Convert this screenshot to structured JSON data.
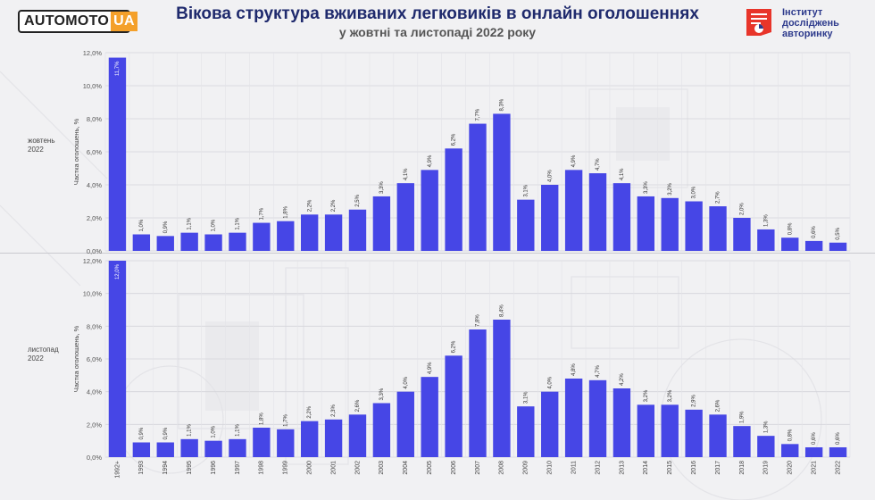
{
  "header": {
    "title": "Вікова структура вживаних легковиків в онлайн оголошеннях",
    "subtitle": "у жовтні та листопаді 2022 року",
    "logo_left": "AUTOMOTO",
    "logo_right": "UA",
    "institute_lines": [
      "Інститут",
      "досліджень",
      "авторинку"
    ]
  },
  "colors": {
    "bar": "#4646e6",
    "title": "#1f2a6d",
    "logo_accent": "#f4a02a",
    "institute_accent": "#e8352a",
    "institute_text": "#2d3a8c"
  },
  "chart_data": [
    {
      "type": "bar",
      "panel_label": [
        "жовтень",
        "2022"
      ],
      "ylabel": "Частка оголошень, %",
      "ylim": [
        0,
        12
      ],
      "yticks": [
        "0,0%",
        "2,0%",
        "4,0%",
        "6,0%",
        "8,0%",
        "10,0%",
        "12,0%"
      ],
      "categories": [
        "1992+",
        "1993",
        "1994",
        "1995",
        "1996",
        "1997",
        "1998",
        "1999",
        "2000",
        "2001",
        "2002",
        "2003",
        "2004",
        "2005",
        "2006",
        "2007",
        "2008",
        "2009",
        "2010",
        "2011",
        "2012",
        "2013",
        "2014",
        "2015",
        "2016",
        "2017",
        "2018",
        "2019",
        "2020",
        "2021",
        "2022"
      ],
      "values": [
        11.7,
        1.0,
        0.9,
        1.1,
        1.0,
        1.1,
        1.7,
        1.8,
        2.2,
        2.2,
        2.5,
        3.3,
        4.1,
        4.9,
        6.2,
        7.7,
        8.3,
        3.1,
        4.0,
        4.9,
        4.7,
        4.1,
        3.3,
        3.2,
        3.0,
        2.7,
        2.0,
        1.3,
        0.8,
        0.6,
        0.5
      ],
      "labels": [
        "11,7%",
        "1,0%",
        "0,9%",
        "1,1%",
        "1,0%",
        "1,1%",
        "1,7%",
        "1,8%",
        "2,2%",
        "2,2%",
        "2,5%",
        "3,3%",
        "4,1%",
        "4,9%",
        "6,2%",
        "7,7%",
        "8,3%",
        "3,1%",
        "4,0%",
        "4,9%",
        "4,7%",
        "4,1%",
        "3,3%",
        "3,2%",
        "3,0%",
        "2,7%",
        "2,0%",
        "1,3%",
        "0,8%",
        "0,6%",
        "0,5%"
      ]
    },
    {
      "type": "bar",
      "panel_label": [
        "листопад",
        "2022"
      ],
      "ylabel": "Частка оголошень, %",
      "ylim": [
        0,
        12
      ],
      "yticks": [
        "0,0%",
        "2,0%",
        "4,0%",
        "6,0%",
        "8,0%",
        "10,0%",
        "12,0%"
      ],
      "categories": [
        "1992+",
        "1993",
        "1994",
        "1995",
        "1996",
        "1997",
        "1998",
        "1999",
        "2000",
        "2001",
        "2002",
        "2003",
        "2004",
        "2005",
        "2006",
        "2007",
        "2008",
        "2009",
        "2010",
        "2011",
        "2012",
        "2013",
        "2014",
        "2015",
        "2016",
        "2017",
        "2018",
        "2019",
        "2020",
        "2021",
        "2022"
      ],
      "values": [
        12.0,
        0.9,
        0.9,
        1.1,
        1.0,
        1.1,
        1.8,
        1.7,
        2.2,
        2.3,
        2.6,
        3.3,
        4.0,
        4.9,
        6.2,
        7.8,
        8.4,
        3.1,
        4.0,
        4.8,
        4.7,
        4.2,
        3.2,
        3.2,
        2.9,
        2.6,
        1.9,
        1.3,
        0.8,
        0.6,
        0.6
      ],
      "labels": [
        "12,0%",
        "0,9%",
        "0,9%",
        "1,1%",
        "1,0%",
        "1,1%",
        "1,8%",
        "1,7%",
        "2,2%",
        "2,3%",
        "2,6%",
        "3,3%",
        "4,0%",
        "4,9%",
        "6,2%",
        "7,8%",
        "8,4%",
        "3,1%",
        "4,0%",
        "4,8%",
        "4,7%",
        "4,2%",
        "3,2%",
        "3,2%",
        "2,9%",
        "2,6%",
        "1,9%",
        "1,3%",
        "0,8%",
        "0,6%",
        "0,6%"
      ]
    }
  ]
}
